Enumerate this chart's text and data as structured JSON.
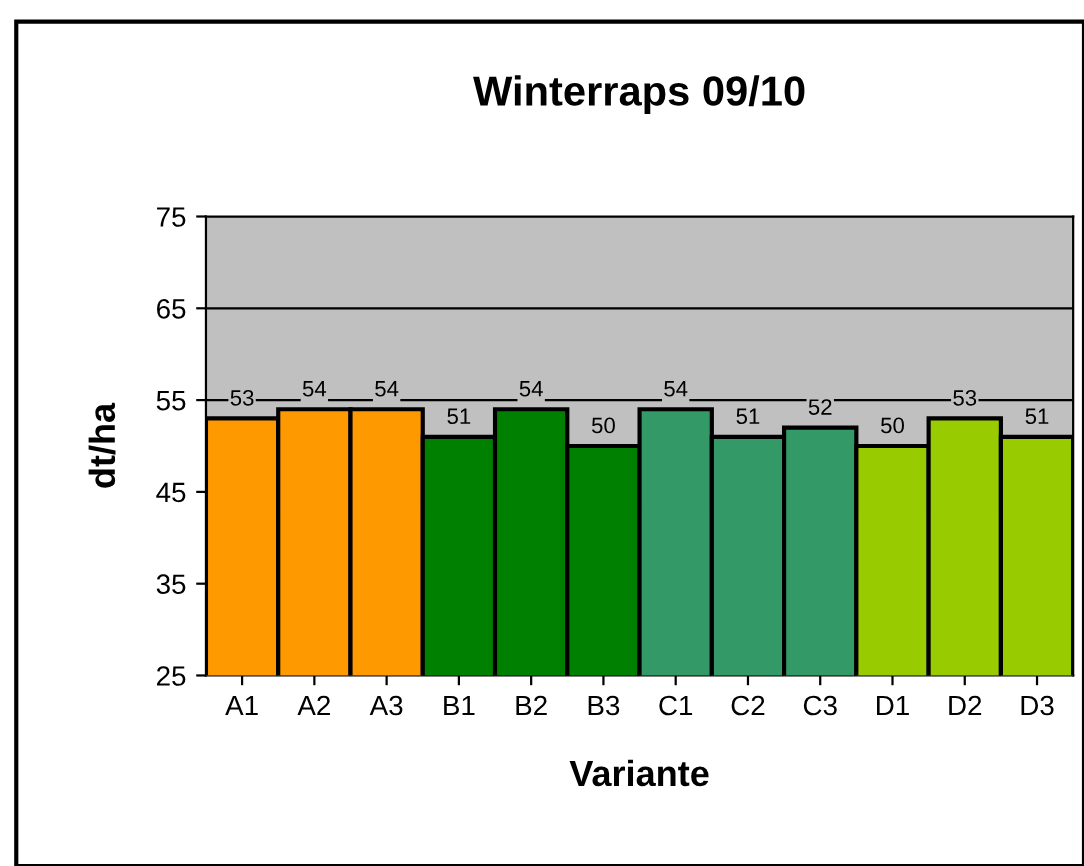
{
  "chart_data": {
    "type": "bar",
    "title": "Winterraps 09/10",
    "xlabel": "Variante",
    "ylabel": "dt/ha",
    "categories": [
      "A1",
      "A2",
      "A3",
      "B1",
      "B2",
      "B3",
      "C1",
      "C2",
      "C3",
      "D1",
      "D2",
      "D3"
    ],
    "values": [
      53,
      54,
      54,
      51,
      54,
      50,
      54,
      51,
      52,
      50,
      53,
      51
    ],
    "colors": [
      "#ff9900",
      "#ff9900",
      "#ff9900",
      "#008000",
      "#008000",
      "#008000",
      "#339966",
      "#339966",
      "#339966",
      "#99cc00",
      "#99cc00",
      "#99cc00"
    ],
    "ylim": [
      25,
      75
    ],
    "yticks": [
      25,
      35,
      45,
      55,
      65,
      75
    ],
    "grid": "y",
    "data_labels": true,
    "legend": false
  }
}
